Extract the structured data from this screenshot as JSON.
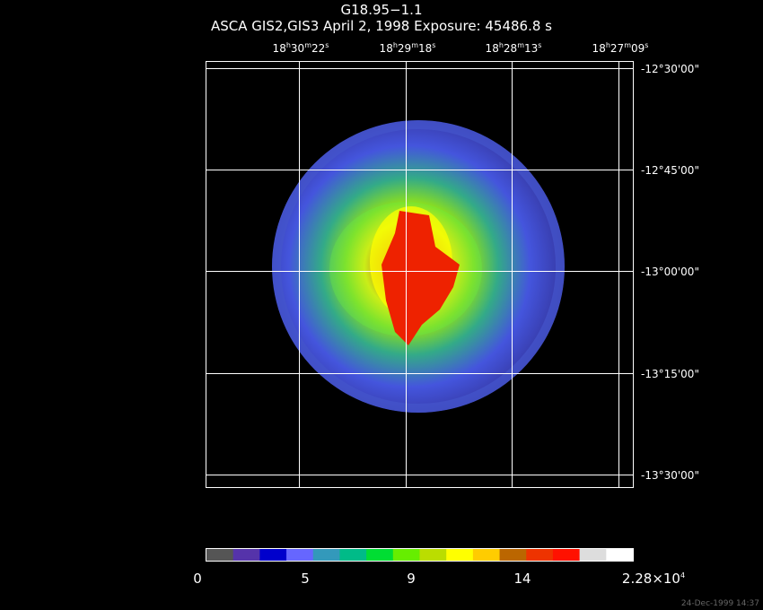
{
  "header": {
    "title": "G18.95−1.1",
    "subtitle": "ASCA GIS2,GIS3 April 2, 1998 Exposure: 45486.8 s"
  },
  "ra_axis": [
    {
      "h": "18",
      "m": "30",
      "s": "22"
    },
    {
      "h": "18",
      "m": "29",
      "s": "18"
    },
    {
      "h": "18",
      "m": "28",
      "s": "13"
    },
    {
      "h": "18",
      "m": "27",
      "s": "09"
    }
  ],
  "dec_axis": [
    "-12°30'00\"",
    "-12°45'00\"",
    "-13°00'00\"",
    "-13°15'00\"",
    "-13°30'00\""
  ],
  "colorbar": {
    "colors": [
      "#555555",
      "#5533aa",
      "#0000cc",
      "#6666ff",
      "#3399bb",
      "#00bb88",
      "#00dd33",
      "#66ee00",
      "#bbdd00",
      "#ffff00",
      "#ffcc00",
      "#bb6600",
      "#ee3300",
      "#ff1100",
      "#dddddd",
      "#ffffff"
    ],
    "labels": [
      "0",
      "5",
      "9",
      "14"
    ],
    "max_label": "2.28×10",
    "max_exp": "4"
  },
  "footer": "24-Dec-1999 14:37"
}
